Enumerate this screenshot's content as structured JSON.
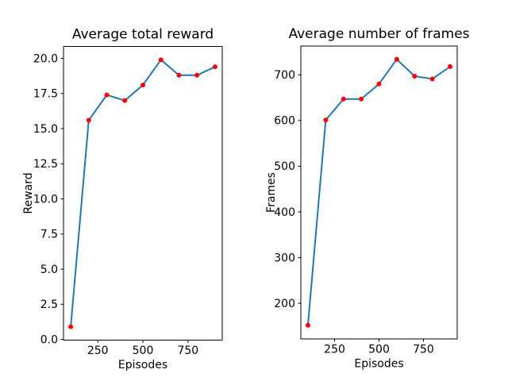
{
  "figure": {
    "background": "#ffffff",
    "line_color": "#1f77b4",
    "marker_color": "#ff0000",
    "spine_color": "#000000",
    "text_color": "#000000"
  },
  "chart_data": [
    {
      "type": "line",
      "title": "Average total reward",
      "xlabel": "Episodes",
      "ylabel": "Reward",
      "x": [
        100,
        200,
        300,
        400,
        500,
        600,
        700,
        800,
        900
      ],
      "y": [
        0.9,
        15.6,
        17.4,
        17.0,
        18.1,
        19.9,
        18.8,
        18.8,
        19.4
      ],
      "xlim": [
        60,
        940
      ],
      "ylim": [
        -0.05,
        20.85
      ],
      "xticks": [
        250,
        500,
        750
      ],
      "xtick_labels": [
        "250",
        "500",
        "750"
      ],
      "yticks": [
        0,
        2.5,
        5,
        7.5,
        10,
        12.5,
        15,
        17.5,
        20
      ],
      "ytick_labels": [
        "0.0",
        "2.5",
        "5.0",
        "7.5",
        "10.0",
        "12.5",
        "15.0",
        "17.5",
        "20.0"
      ],
      "grid": false,
      "legend": null,
      "marker": "red-dot"
    },
    {
      "type": "line",
      "title": "Average number of frames",
      "xlabel": "Episodes",
      "ylabel": "Frames",
      "x": [
        100,
        200,
        300,
        400,
        500,
        600,
        700,
        800,
        900
      ],
      "y": [
        152,
        601,
        647,
        647,
        680,
        734,
        697,
        691,
        718
      ],
      "xlim": [
        60,
        940
      ],
      "ylim": [
        122,
        763
      ],
      "xticks": [
        250,
        500,
        750
      ],
      "xtick_labels": [
        "250",
        "500",
        "750"
      ],
      "yticks": [
        200,
        300,
        400,
        500,
        600,
        700
      ],
      "ytick_labels": [
        "200",
        "300",
        "400",
        "500",
        "600",
        "700"
      ],
      "grid": false,
      "legend": null,
      "marker": "red-dot"
    }
  ]
}
